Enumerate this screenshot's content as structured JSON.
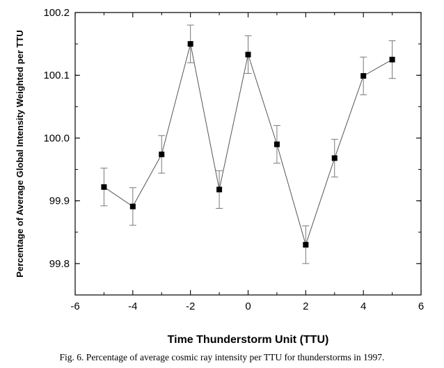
{
  "chart_data": {
    "type": "line",
    "xlabel": "Time Thunderstorm Unit (TTU)",
    "ylabel": "Percentage of Average Global Intensity Weighted per TTU",
    "xlim": [
      -6,
      6
    ],
    "ylim": [
      99.75,
      100.2
    ],
    "x_ticks": [
      -6,
      -4,
      -2,
      0,
      2,
      4,
      6
    ],
    "x_tick_labels": [
      "-6",
      "-4",
      "-2",
      "0",
      "2",
      "4",
      "6"
    ],
    "y_ticks": [
      99.8,
      99.9,
      100.0,
      100.1,
      100.2
    ],
    "y_tick_labels": [
      "99.8",
      "99.9",
      "100.0",
      "100.1",
      "100.2"
    ],
    "grid": false,
    "marker": "square",
    "series": [
      {
        "x": [
          -5,
          -4,
          -3,
          -2,
          -1,
          0,
          1,
          2,
          3,
          4,
          5
        ],
        "y": [
          99.922,
          99.891,
          99.974,
          100.15,
          99.918,
          100.133,
          99.99,
          99.83,
          99.968,
          100.099,
          100.125
        ],
        "error": [
          0.03,
          0.03,
          0.03,
          0.03,
          0.03,
          0.03,
          0.03,
          0.03,
          0.03,
          0.03,
          0.03
        ]
      }
    ],
    "colors": {
      "line": "#555555",
      "marker": "#000000",
      "errorbar": "#777777",
      "axis": "#000000"
    }
  },
  "caption": "Fig. 6. Percentage of average cosmic ray intensity per TTU for thunderstorms in 1997."
}
